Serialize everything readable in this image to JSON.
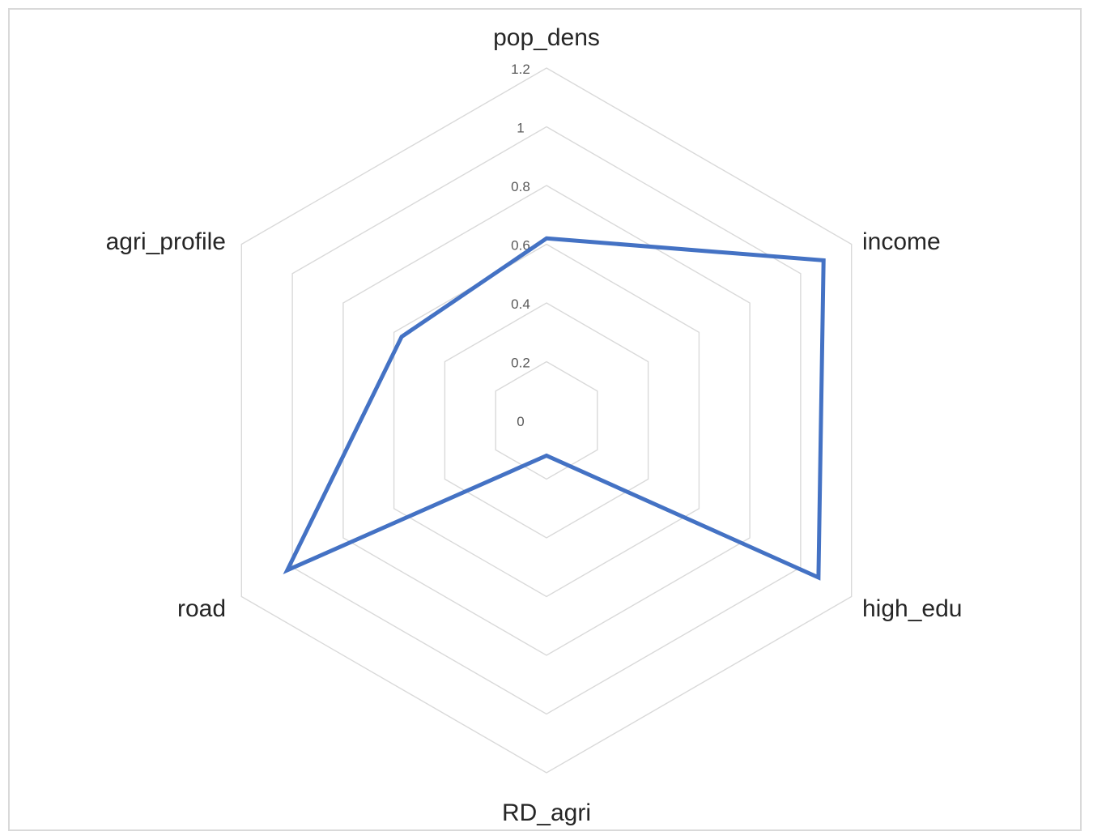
{
  "chart_data": {
    "type": "radar",
    "title": "",
    "categories": [
      "pop_dens",
      "income",
      "high_edu",
      "RD_agri",
      "road",
      "agri_profile"
    ],
    "series": [
      {
        "values": [
          0.62,
          1.09,
          1.07,
          0.12,
          1.02,
          0.57
        ]
      }
    ],
    "rlim": [
      0,
      1.2
    ],
    "ticks": [
      "0",
      "0.2",
      "0.4",
      "0.6",
      "0.8",
      "1",
      "1.2"
    ],
    "tick_values": [
      0,
      0.2,
      0.4,
      0.6,
      0.8,
      1.0,
      1.2
    ],
    "grid": true,
    "legend": "none",
    "colors": {
      "series": "#4472c4",
      "grid": "#d9d9d9"
    }
  }
}
